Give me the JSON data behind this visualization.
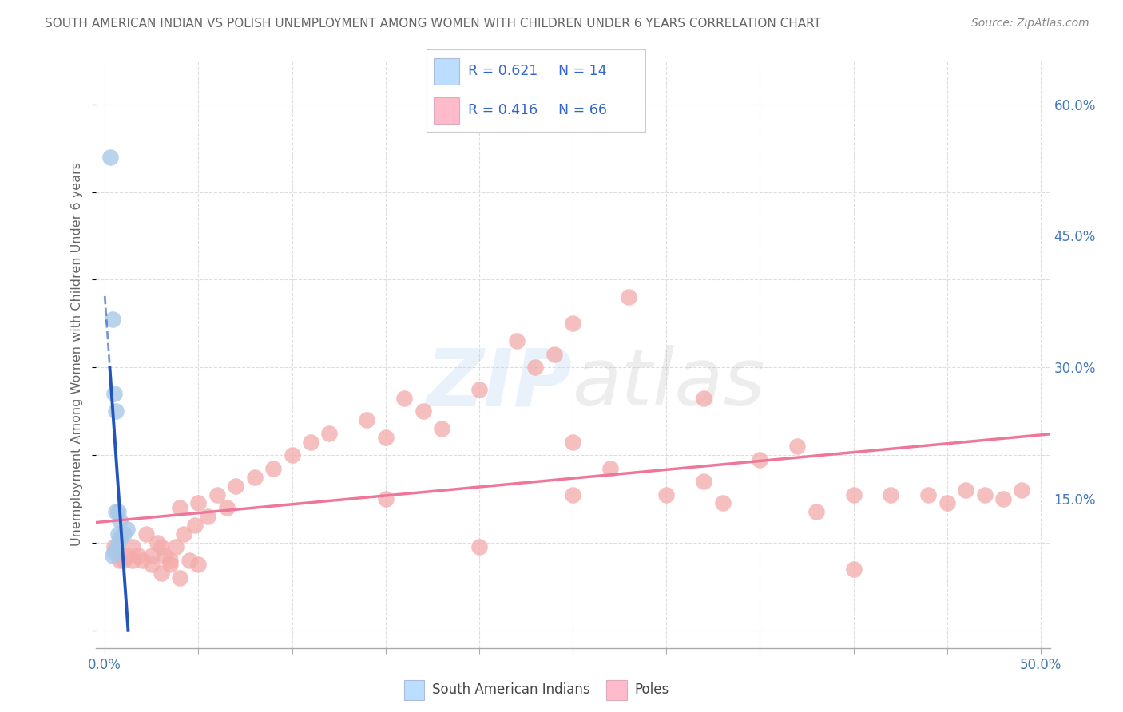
{
  "title": "SOUTH AMERICAN INDIAN VS POLISH UNEMPLOYMENT AMONG WOMEN WITH CHILDREN UNDER 6 YEARS CORRELATION CHART",
  "source": "Source: ZipAtlas.com",
  "ylabel": "Unemployment Among Women with Children Under 6 years",
  "xlim": [
    -0.005,
    0.505
  ],
  "ylim": [
    -0.02,
    0.65
  ],
  "xtick_vals": [
    0.0,
    0.05,
    0.1,
    0.15,
    0.2,
    0.25,
    0.3,
    0.35,
    0.4,
    0.45,
    0.5
  ],
  "ytick_right_vals": [
    0.0,
    0.15,
    0.3,
    0.45,
    0.6
  ],
  "ytick_right_labels": [
    "",
    "15.0%",
    "30.0%",
    "45.0%",
    "60.0%"
  ],
  "legend_r1": "R = 0.621",
  "legend_n1": "N = 14",
  "legend_r2": "R = 0.416",
  "legend_n2": "N = 66",
  "legend_label1": "South American Indians",
  "legend_label2": "Poles",
  "color_blue": "#A8C8E8",
  "color_pink": "#F4AAAA",
  "color_blue_line": "#2255BB",
  "color_pink_line": "#EE7799",
  "color_blue_legend": "#BBDDFF",
  "color_pink_legend": "#FFBBCC",
  "blue_dots_x": [
    0.003,
    0.004,
    0.004,
    0.005,
    0.005,
    0.006,
    0.006,
    0.007,
    0.007,
    0.007,
    0.008,
    0.008,
    0.01,
    0.012
  ],
  "blue_dots_y": [
    0.54,
    0.355,
    0.085,
    0.27,
    0.09,
    0.25,
    0.135,
    0.135,
    0.11,
    0.1,
    0.125,
    0.105,
    0.11,
    0.115
  ],
  "pink_dots_x": [
    0.005,
    0.008,
    0.01,
    0.012,
    0.015,
    0.015,
    0.018,
    0.02,
    0.022,
    0.025,
    0.025,
    0.028,
    0.03,
    0.032,
    0.035,
    0.035,
    0.038,
    0.04,
    0.042,
    0.045,
    0.048,
    0.05,
    0.055,
    0.06,
    0.065,
    0.07,
    0.08,
    0.09,
    0.1,
    0.11,
    0.12,
    0.14,
    0.15,
    0.16,
    0.17,
    0.18,
    0.2,
    0.22,
    0.23,
    0.24,
    0.25,
    0.25,
    0.27,
    0.28,
    0.3,
    0.32,
    0.32,
    0.33,
    0.35,
    0.37,
    0.38,
    0.4,
    0.4,
    0.42,
    0.44,
    0.45,
    0.46,
    0.47,
    0.48,
    0.49,
    0.2,
    0.25,
    0.15,
    0.03,
    0.04,
    0.05
  ],
  "pink_dots_y": [
    0.095,
    0.08,
    0.08,
    0.085,
    0.095,
    0.08,
    0.085,
    0.08,
    0.11,
    0.085,
    0.075,
    0.1,
    0.095,
    0.085,
    0.08,
    0.075,
    0.095,
    0.14,
    0.11,
    0.08,
    0.12,
    0.145,
    0.13,
    0.155,
    0.14,
    0.165,
    0.175,
    0.185,
    0.2,
    0.215,
    0.225,
    0.24,
    0.22,
    0.265,
    0.25,
    0.23,
    0.275,
    0.33,
    0.3,
    0.315,
    0.35,
    0.215,
    0.185,
    0.38,
    0.155,
    0.17,
    0.265,
    0.145,
    0.195,
    0.21,
    0.135,
    0.155,
    0.07,
    0.155,
    0.155,
    0.145,
    0.16,
    0.155,
    0.15,
    0.16,
    0.095,
    0.155,
    0.15,
    0.065,
    0.06,
    0.075
  ],
  "background_color": "#FFFFFF",
  "grid_color": "#DDDDDD",
  "grid_style": "--"
}
